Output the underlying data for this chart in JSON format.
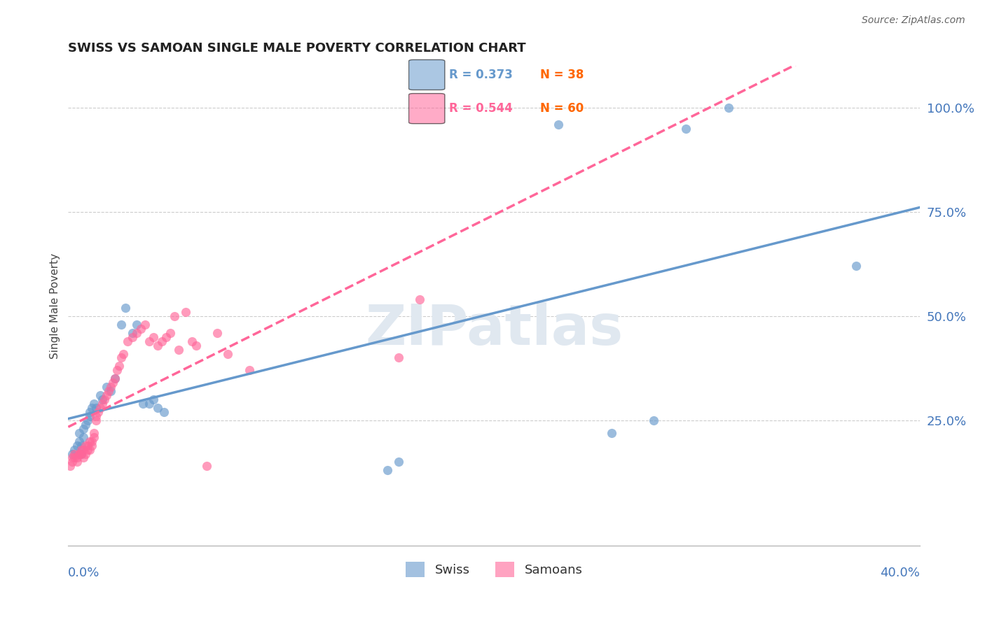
{
  "title": "SWISS VS SAMOAN SINGLE MALE POVERTY CORRELATION CHART",
  "source": "Source: ZipAtlas.com",
  "ylabel": "Single Male Poverty",
  "ytick_labels": [
    "100.0%",
    "75.0%",
    "50.0%",
    "25.0%"
  ],
  "ytick_values": [
    1.0,
    0.75,
    0.5,
    0.25
  ],
  "xlim": [
    0.0,
    0.4
  ],
  "ylim": [
    -0.05,
    1.1
  ],
  "swiss_color": "#6699CC",
  "samoan_color": "#FF6699",
  "swiss_R": 0.373,
  "swiss_N": 38,
  "samoan_R": 0.544,
  "samoan_N": 60,
  "swiss_points_x": [
    0.002,
    0.003,
    0.004,
    0.005,
    0.005,
    0.006,
    0.006,
    0.007,
    0.007,
    0.008,
    0.009,
    0.01,
    0.01,
    0.011,
    0.012,
    0.013,
    0.015,
    0.016,
    0.018,
    0.02,
    0.022,
    0.025,
    0.027,
    0.03,
    0.032,
    0.035,
    0.038,
    0.04,
    0.042,
    0.045,
    0.15,
    0.155,
    0.23,
    0.255,
    0.275,
    0.29,
    0.31,
    0.37
  ],
  "swiss_points_y": [
    0.17,
    0.18,
    0.19,
    0.2,
    0.22,
    0.17,
    0.19,
    0.21,
    0.23,
    0.24,
    0.25,
    0.26,
    0.27,
    0.28,
    0.29,
    0.28,
    0.31,
    0.3,
    0.33,
    0.32,
    0.35,
    0.48,
    0.52,
    0.46,
    0.48,
    0.29,
    0.29,
    0.3,
    0.28,
    0.27,
    0.13,
    0.15,
    0.96,
    0.22,
    0.25,
    0.95,
    1.0,
    0.62
  ],
  "samoan_points_x": [
    0.001,
    0.002,
    0.002,
    0.003,
    0.003,
    0.004,
    0.004,
    0.005,
    0.005,
    0.006,
    0.006,
    0.007,
    0.007,
    0.008,
    0.008,
    0.009,
    0.009,
    0.01,
    0.01,
    0.011,
    0.011,
    0.012,
    0.012,
    0.013,
    0.013,
    0.014,
    0.015,
    0.016,
    0.017,
    0.018,
    0.019,
    0.02,
    0.021,
    0.022,
    0.023,
    0.024,
    0.025,
    0.026,
    0.028,
    0.03,
    0.032,
    0.034,
    0.036,
    0.038,
    0.04,
    0.042,
    0.044,
    0.046,
    0.048,
    0.05,
    0.052,
    0.055,
    0.058,
    0.06,
    0.065,
    0.07,
    0.075,
    0.085,
    0.155,
    0.165
  ],
  "samoan_points_y": [
    0.14,
    0.15,
    0.16,
    0.16,
    0.17,
    0.15,
    0.16,
    0.17,
    0.17,
    0.18,
    0.17,
    0.16,
    0.18,
    0.19,
    0.17,
    0.18,
    0.19,
    0.2,
    0.18,
    0.19,
    0.2,
    0.21,
    0.22,
    0.25,
    0.26,
    0.27,
    0.28,
    0.29,
    0.3,
    0.31,
    0.32,
    0.33,
    0.34,
    0.35,
    0.37,
    0.38,
    0.4,
    0.41,
    0.44,
    0.45,
    0.46,
    0.47,
    0.48,
    0.44,
    0.45,
    0.43,
    0.44,
    0.45,
    0.46,
    0.5,
    0.42,
    0.51,
    0.44,
    0.43,
    0.14,
    0.46,
    0.41,
    0.37,
    0.4,
    0.54
  ],
  "background_color": "#FFFFFF",
  "grid_color": "#CCCCCC",
  "axis_color": "#4477BB",
  "watermark_zip": "ZIP",
  "watermark_atlas": "atlas",
  "watermark_color": "#E0E8F0"
}
